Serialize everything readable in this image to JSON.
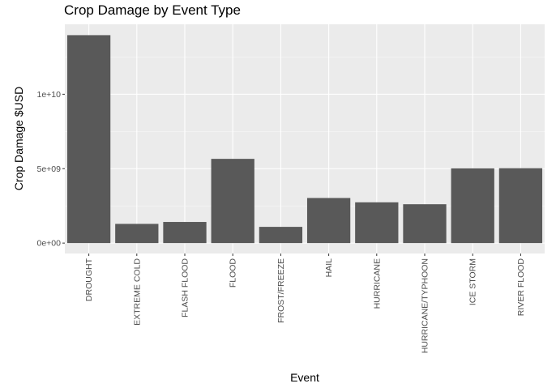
{
  "chart_data": {
    "type": "bar",
    "title": "Crop Damage by Event Type",
    "xlabel": "Event",
    "ylabel": "Crop Damage $USD",
    "categories": [
      "DROUGHT",
      "EXTREME COLD",
      "FLASH FLOOD",
      "FLOOD",
      "FROST/FREEZE",
      "HAIL",
      "HURRICANE",
      "HURRICANE/TYPHOON",
      "ICE STORM",
      "RIVER FLOOD"
    ],
    "values": [
      13970000000,
      1290000000,
      1420000000,
      5660000000,
      1090000000,
      3030000000,
      2740000000,
      2610000000,
      5020000000,
      5030000000
    ],
    "yticks": [
      0,
      5000000000,
      10000000000
    ],
    "ytick_labels": [
      "0e+00",
      "5e+09",
      "1e+10"
    ],
    "ylim": [
      -700000000,
      14700000000
    ],
    "grid": true,
    "bar_color": "#595959",
    "panel_color": "#ebebeb"
  }
}
